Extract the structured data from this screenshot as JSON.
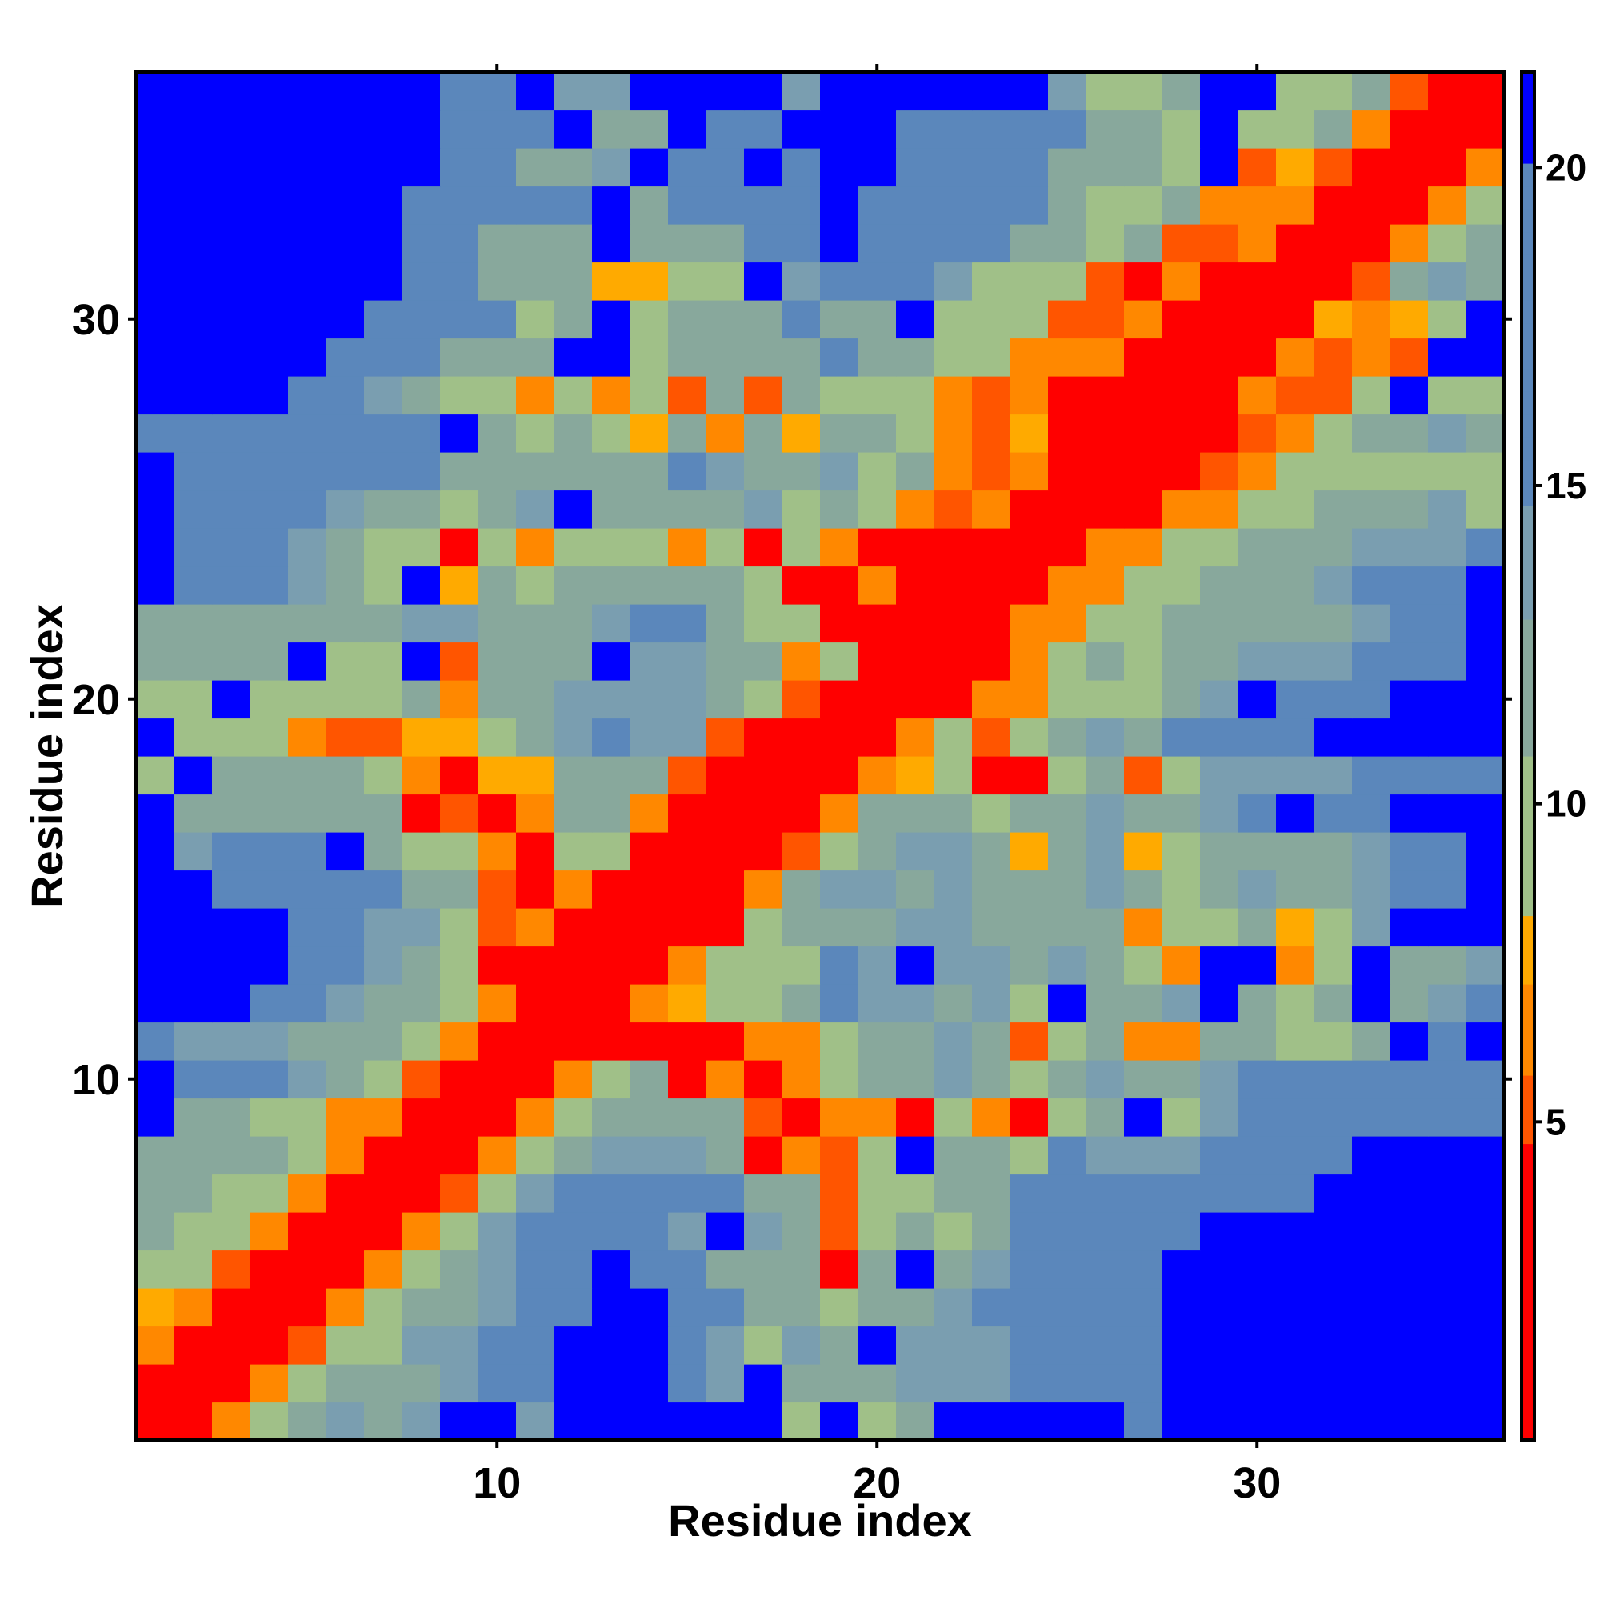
{
  "chart_data": {
    "type": "heatmap",
    "title": "",
    "xlabel": "Residue index",
    "ylabel": "Residue index",
    "xlim": [
      0.5,
      36.5
    ],
    "ylim": [
      0.5,
      36.5
    ],
    "x_ticks": [
      10,
      20,
      30
    ],
    "y_ticks": [
      10,
      20,
      30
    ],
    "colorbar": {
      "ticks": [
        5,
        10,
        15,
        20
      ],
      "range": [
        0,
        21.5
      ],
      "colors": [
        "#ff0000",
        "#ff5500",
        "#ff8800",
        "#ffaa00",
        "#a0c088",
        "#88a89c",
        "#7a9eb0",
        "#5b87bb",
        "#0000ff"
      ]
    },
    "n_residues": 36,
    "values_description_rows": "matrix[i][j] = distance between residue i+1 and residue j+1",
    "matrix": [
      [
        0.0,
        3.8,
        6.4,
        9.9,
        11.3,
        12.9,
        11.5,
        13.8,
        22.0,
        22.0,
        14.5,
        22.0,
        22.0,
        22.0,
        22.0,
        22.0,
        22.0,
        10.3,
        22.0,
        10.4,
        12.3,
        22.0,
        22.0,
        22.0,
        22.0,
        22.0,
        16.5,
        22.0,
        22.0,
        22.0,
        22.0,
        22.0,
        22.0,
        22.0,
        22.0,
        22.0
      ],
      [
        3.8,
        0.0,
        3.8,
        6.4,
        10.0,
        11.1,
        11.7,
        12.4,
        13.5,
        14.7,
        14.8,
        22.0,
        22.0,
        22.0,
        15.8,
        12.9,
        22.0,
        11.8,
        11.0,
        10.8,
        12.8,
        13.6,
        14.0,
        15.1,
        16.2,
        16.9,
        17.5,
        22.0,
        22.0,
        22.0,
        22.0,
        22.0,
        22.0,
        22.0,
        22.0,
        22.0
      ],
      [
        6.4,
        3.8,
        0.0,
        3.8,
        5.3,
        9.5,
        10.3,
        13.1,
        13.4,
        15.1,
        17.1,
        22.0,
        22.0,
        22.0,
        16.5,
        14.2,
        10.5,
        13.5,
        10.8,
        22.0,
        12.8,
        13.8,
        14.5,
        15.6,
        16.7,
        17.5,
        18.0,
        22.0,
        22.0,
        22.0,
        22.0,
        22.0,
        22.0,
        22.0,
        22.0,
        22.0
      ],
      [
        7.0,
        6.4,
        3.8,
        0.0,
        3.8,
        6.3,
        9.7,
        10.9,
        12.3,
        13.2,
        15.5,
        15.6,
        22.0,
        22.0,
        15.8,
        14.8,
        12.5,
        12.2,
        9.9,
        11.0,
        11.7,
        13.4,
        14.8,
        14.9,
        16.4,
        17.2,
        17.3,
        22.0,
        22.0,
        22.0,
        22.0,
        22.0,
        22.0,
        22.0,
        22.0,
        22.0
      ],
      [
        9.6,
        9.4,
        5.5,
        3.8,
        0.0,
        3.8,
        6.3,
        9.2,
        11.0,
        13.1,
        15.8,
        15.2,
        22.0,
        17.1,
        17.5,
        12.4,
        12.3,
        12.5,
        3.5,
        12.1,
        22.0,
        12.5,
        14.2,
        14.6,
        16.6,
        17.5,
        17.4,
        22.0,
        22.0,
        22.0,
        22.0,
        22.0,
        22.0,
        22.0,
        22.0,
        22.0
      ],
      [
        12.4,
        10.2,
        10.2,
        6.5,
        3.8,
        0.0,
        3.8,
        5.8,
        9.7,
        12.9,
        15.7,
        16.1,
        16.3,
        15.6,
        13.8,
        22.0,
        13.3,
        12.3,
        5.0,
        10.5,
        11.5,
        10.1,
        12.2,
        15.0,
        16.9,
        17.4,
        16.9,
        15.8,
        22.0,
        22.0,
        22.0,
        22.0,
        22.0,
        22.0,
        22.0,
        22.0
      ],
      [
        11.7,
        11.9,
        10.0,
        9.3,
        6.5,
        3.8,
        0.0,
        3.8,
        5.1,
        9.8,
        13.7,
        16.2,
        16.3,
        16.4,
        15.5,
        14.6,
        11.3,
        11.9,
        5.3,
        9.2,
        10.5,
        11.1,
        12.7,
        14.6,
        16.2,
        17.0,
        16.9,
        17.2,
        17.3,
        17.3,
        17.3,
        22.0,
        22.0,
        22.0,
        22.0,
        22.0
      ],
      [
        12.0,
        11.1,
        11.8,
        10.8,
        9.0,
        6.3,
        3.8,
        0.0,
        3.8,
        6.5,
        10.6,
        12.6,
        13.0,
        13.4,
        14.5,
        11.3,
        3.0,
        6.0,
        5.4,
        10.3,
        22.0,
        12.6,
        11.1,
        9.8,
        15.8,
        14.5,
        14.5,
        14.5,
        17.5,
        17.5,
        17.5,
        17.5,
        22.0,
        22.0,
        22.0,
        22.0
      ],
      [
        22.0,
        11.9,
        12.5,
        10.4,
        10.4,
        6.3,
        6.4,
        3.8,
        0.0,
        3.8,
        6.3,
        10.3,
        12.0,
        12.2,
        11.4,
        10.8,
        5.4,
        4.0,
        6.3,
        6.4,
        3.3,
        10.1,
        6.6,
        4.1,
        9.4,
        11.6,
        22.0,
        9.3,
        13.3,
        15.5,
        15.9,
        16.4,
        16.7,
        16.7,
        16.9,
        15.6
      ],
      [
        22.0,
        15.6,
        15.6,
        15.6,
        13.4,
        12.2,
        9.9,
        5.5,
        3.8,
        0.0,
        3.8,
        5.9,
        9.4,
        10.9,
        4.1,
        6.3,
        4.2,
        6.5,
        10.6,
        11.3,
        11.6,
        13.2,
        12.3,
        9.6,
        11.2,
        13.2,
        11.7,
        11.3,
        14.1,
        16.6,
        15.2,
        15.1,
        16.6,
        16.7,
        16.7,
        15.6
      ],
      [
        15.4,
        14.3,
        14.3,
        14.5,
        11.3,
        12.4,
        12.0,
        9.0,
        6.2,
        3.8,
        0.0,
        3.8,
        3.0,
        3.5,
        3.5,
        3.5,
        6.6,
        6.5,
        10.6,
        12.2,
        12.2,
        13.2,
        11.4,
        5.3,
        10.3,
        11.9,
        6.6,
        6.6,
        10.8,
        11.5,
        9.7,
        10.7,
        11.4,
        22.0,
        14.9,
        22.0
      ],
      [
        22.0,
        22.0,
        22.0,
        15.1,
        15.3,
        14.5,
        12.4,
        11.3,
        8.8,
        6.3,
        3.8,
        0.0,
        3.8,
        6.6,
        7.0,
        9.7,
        10.6,
        11.1,
        16.2,
        14.1,
        13.6,
        12.7,
        13.2,
        9.5,
        22.0,
        11.6,
        10.8,
        12.9,
        22.0,
        11.1,
        10.6,
        11.9,
        22.0,
        12.1,
        13.3,
        14.8
      ],
      [
        22.0,
        22.0,
        22.0,
        22.0,
        16.1,
        16.3,
        13.7,
        12.6,
        10.6,
        4.4,
        4.4,
        3.8,
        0.0,
        3.8,
        6.0,
        10.5,
        10.5,
        10.3,
        16.2,
        14.3,
        22.0,
        13.2,
        12.9,
        10.8,
        13.0,
        11.3,
        10.0,
        6.6,
        22.0,
        22.0,
        6.9,
        10.3,
        22.0,
        11.3,
        12.5,
        13.1
      ],
      [
        22.0,
        22.0,
        22.0,
        22.0,
        16.8,
        16.6,
        14.1,
        13.4,
        10.2,
        5.1,
        6.3,
        3.8,
        3.8,
        0.0,
        3.8,
        3.7,
        9.9,
        11.0,
        12.5,
        12.6,
        13.7,
        14.5,
        11.2,
        11.2,
        11.0,
        11.5,
        6.7,
        10.1,
        10.2,
        10.8,
        7.2,
        10.6,
        13.8,
        22.0,
        22.0,
        22.0
      ],
      [
        22.0,
        22.0,
        16.2,
        16.2,
        16.3,
        15.8,
        15.6,
        12.5,
        10.8,
        5.2,
        4.1,
        6.3,
        3.8,
        3.8,
        0.0,
        3.8,
        6.5,
        10.8,
        14.1,
        13.8,
        12.5,
        14.3,
        12.1,
        10.9,
        12.0,
        14.1,
        11.3,
        10.4,
        12.4,
        13.6,
        11.9,
        12.4,
        14.2,
        15.2,
        16.4,
        22.0
      ],
      [
        22.0,
        14.2,
        15.4,
        16.2,
        15.9,
        22.0,
        12.4,
        10.5,
        10.0,
        6.6,
        3.5,
        10.5,
        10.2,
        3.8,
        3.8,
        0.0,
        3.8,
        5.6,
        10.1,
        12.5,
        12.9,
        13.9,
        10.8,
        7.2,
        11.7,
        12.9,
        7.3,
        10.7,
        11.4,
        12.7,
        10.8,
        11.8,
        14.0,
        15.1,
        15.2,
        22.0
      ],
      [
        22.0,
        11.5,
        11.5,
        12.5,
        12.6,
        11.7,
        11.1,
        3.5,
        5.6,
        4.2,
        6.6,
        12.3,
        12.3,
        6.5,
        3.8,
        3.8,
        0.0,
        3.8,
        6.5,
        10.9,
        12.3,
        12.6,
        10.4,
        11.0,
        12.2,
        13.2,
        12.5,
        12.0,
        14.4,
        16.1,
        22.0,
        15.7,
        16.5,
        22.0,
        22.0,
        22.0
      ],
      [
        10.4,
        22.0,
        12.5,
        12.5,
        12.4,
        11.2,
        10.3,
        6.5,
        4.2,
        7.4,
        7.4,
        12.1,
        12.1,
        11.9,
        5.2,
        3.8,
        3.8,
        0.0,
        3.8,
        6.1,
        7.4,
        10.4,
        3.0,
        3.0,
        10.6,
        11.3,
        5.4,
        10.5,
        13.5,
        12.8,
        13.3,
        14.5,
        16.5,
        16.5,
        16.5,
        15.2
      ],
      [
        22.0,
        10.4,
        10.4,
        10.4,
        5.8,
        5.1,
        5.1,
        7.4,
        7.2,
        10.2,
        11.2,
        13.4,
        14.9,
        13.2,
        13.4,
        5.5,
        3.8,
        3.8,
        0.0,
        3.8,
        6.4,
        10.4,
        4.5,
        10.3,
        11.6,
        13.0,
        12.7,
        14.8,
        16.3,
        17.2,
        16.8,
        22.0,
        22.0,
        22.0,
        22.0,
        22.0
      ],
      [
        10.1,
        10.4,
        22.0,
        10.1,
        10.6,
        10.6,
        10.6,
        11.0,
        6.8,
        12.4,
        12.6,
        13.2,
        14.1,
        13.9,
        13.8,
        10.8,
        10.1,
        5.3,
        3.8,
        0.0,
        3.8,
        3.8,
        5.9,
        6.8,
        10.6,
        10.4,
        10.1,
        12.1,
        13.2,
        22.0,
        15.3,
        16.5,
        16.5,
        22.0,
        22.0,
        22.0
      ],
      [
        12.4,
        12.5,
        12.5,
        12.1,
        22.0,
        10.6,
        10.1,
        22.0,
        4.7,
        10.9,
        10.9,
        12.3,
        22.0,
        13.4,
        13.6,
        12.2,
        11.4,
        6.4,
        10.0,
        3.8,
        0.0,
        3.8,
        3.8,
        6.5,
        10.2,
        11.2,
        10.6,
        11.1,
        12.7,
        13.4,
        13.4,
        14.5,
        15.4,
        15.4,
        15.4,
        22.0
      ],
      [
        12.6,
        12.6,
        12.6,
        12.6,
        12.6,
        12.6,
        12.6,
        12.8,
        12.8,
        12.6,
        12.6,
        12.6,
        12.8,
        15.2,
        15.2,
        12.4,
        9.2,
        9.2,
        4.2,
        3.8,
        3.8,
        0.0,
        3.8,
        6.0,
        6.5,
        10.6,
        10.6,
        11.0,
        11.6,
        12.4,
        12.4,
        12.3,
        13.0,
        15.2,
        15.2,
        22.0
      ],
      [
        22.0,
        16.0,
        16.0,
        16.0,
        12.9,
        11.2,
        10.5,
        22.0,
        7.0,
        11.2,
        10.4,
        12.4,
        12.4,
        12.4,
        12.4,
        11.0,
        10.6,
        3.5,
        4.0,
        6.0,
        3.8,
        3.8,
        0.0,
        3.8,
        6.0,
        6.5,
        10.3,
        10.6,
        10.9,
        12.2,
        12.4,
        13.0,
        15.0,
        16.1,
        16.1,
        22.0
      ],
      [
        22.0,
        16.3,
        16.3,
        15.7,
        12.8,
        11.2,
        10.6,
        10.1,
        4.0,
        10.6,
        6.1,
        10.5,
        10.7,
        10.3,
        6.1,
        10.4,
        3.3,
        10.1,
        6.1,
        4.3,
        3.8,
        3.8,
        0.0,
        0.0,
        3.8,
        6.0,
        6.2,
        10.3,
        10.6,
        12.3,
        12.2,
        12.3,
        13.3,
        13.7,
        13.8,
        16.5
      ],
      [
        22.0,
        16.2,
        16.2,
        16.2,
        16.1,
        13.1,
        12.6,
        11.5,
        10.3,
        11.4,
        12.9,
        22.0,
        11.4,
        12.6,
        12.6,
        12.0,
        12.8,
        10.4,
        11.6,
        10.7,
        6.7,
        5.1,
        6.2,
        3.8,
        3.8,
        0.0,
        3.8,
        6.1,
        6.5,
        10.4,
        10.4,
        11.5,
        12.3,
        11.7,
        13.0,
        10.5
      ],
      [
        22.0,
        16.4,
        16.4,
        16.4,
        16.4,
        16.4,
        15.5,
        15.5,
        11.6,
        12.6,
        11.2,
        12.5,
        12.5,
        12.5,
        15.4,
        12.9,
        12.4,
        11.0,
        12.8,
        10.2,
        11.2,
        6.2,
        5.2,
        6.2,
        3.8,
        3.8,
        0.0,
        3.8,
        5.7,
        6.2,
        10.5,
        10.5,
        10.6,
        10.4,
        10.6,
        10.3
      ],
      [
        16.6,
        16.6,
        16.6,
        16.6,
        16.6,
        15.6,
        15.6,
        15.6,
        22.0,
        10.8,
        10.4,
        12.1,
        10.5,
        7.3,
        12.0,
        6.8,
        11.5,
        7.5,
        11.5,
        11.1,
        10.5,
        6.9,
        5.5,
        7.0,
        3.8,
        0.0,
        3.8,
        0.0,
        3.8,
        5.5,
        6.4,
        10.4,
        11.6,
        11.6,
        14.4,
        12.5
      ],
      [
        22.0,
        22.0,
        22.0,
        22.0,
        16.0,
        15.7,
        14.0,
        12.5,
        10.6,
        10.3,
        5.8,
        10.4,
        6.9,
        10.5,
        5.1,
        11.0,
        4.7,
        11.1,
        10.6,
        9.7,
        10.2,
        6.9,
        5.6,
        6.8,
        3.8,
        3.8,
        0.0,
        3.8,
        3.8,
        6.0,
        5.3,
        5.3,
        10.7,
        22.0,
        10.5,
        10.5
      ],
      [
        22.0,
        22.0,
        22.0,
        22.0,
        22.0,
        17.2,
        15.4,
        15.4,
        12.1,
        12.1,
        12.5,
        22.0,
        22.0,
        10.4,
        12.5,
        12.4,
        10.8,
        12.6,
        15.1,
        12.6,
        12.0,
        10.1,
        10.5,
        5.8,
        6.2,
        6.8,
        3.8,
        3.8,
        0.0,
        3.8,
        6.3,
        4.9,
        6.7,
        5.1,
        22.0,
        22.0
      ],
      [
        22.0,
        22.0,
        22.0,
        22.0,
        22.0,
        22.0,
        17.6,
        17.6,
        15.4,
        15.4,
        10.4,
        12.3,
        22.0,
        10.2,
        12.6,
        12.3,
        12.6,
        16.3,
        12.5,
        12.4,
        22.0,
        10.4,
        10.2,
        10.4,
        5.5,
        5.2,
        5.8,
        3.8,
        3.8,
        0.0,
        3.8,
        7.1,
        6.2,
        7.1,
        10.2,
        22.0
      ],
      [
        22.0,
        22.0,
        22.0,
        22.0,
        22.0,
        22.0,
        22.0,
        17.5,
        17.6,
        12.5,
        12.6,
        10.8,
        7.0,
        7.0,
        10.6,
        9.9,
        22.0,
        12.8,
        15.5,
        15.5,
        15.5,
        12.8,
        10.2,
        10.1,
        10.1,
        5.5,
        4.3,
        6.0,
        3.8,
        3.8,
        0.0,
        3.8,
        5.3,
        11.4,
        12.8,
        10.8
      ],
      [
        22.0,
        22.0,
        22.0,
        22.0,
        22.0,
        22.0,
        22.0,
        17.5,
        17.5,
        12.5,
        12.5,
        12.6,
        22.0,
        12.6,
        12.5,
        12.6,
        15.7,
        17.5,
        22.0,
        17.5,
        15.8,
        15.6,
        15.3,
        10.8,
        11.6,
        10.6,
        10.8,
        5.2,
        4.6,
        6.0,
        3.8,
        0.0,
        3.8,
        6.6,
        10.3,
        12.6
      ],
      [
        22.0,
        22.0,
        22.0,
        22.0,
        22.0,
        22.0,
        22.0,
        17.5,
        17.5,
        15.2,
        15.2,
        15.7,
        22.0,
        11.8,
        15.2,
        15.8,
        15.8,
        15.8,
        22.0,
        17.6,
        17.6,
        16.3,
        15.7,
        15.4,
        11.3,
        10.4,
        10.4,
        11.0,
        6.1,
        6.6,
        6.6,
        3.8,
        0.0,
        3.8,
        6.1,
        10.7
      ],
      [
        22.0,
        22.0,
        22.0,
        22.0,
        22.0,
        22.0,
        22.0,
        22.0,
        15.2,
        15.2,
        12.5,
        12.7,
        12.9,
        22.0,
        15.4,
        15.5,
        22.0,
        17.0,
        22.0,
        22.0,
        17.5,
        17.5,
        16.0,
        15.4,
        11.6,
        11.4,
        12.5,
        10.6,
        22.0,
        5.5,
        7.1,
        5.5,
        3.8,
        0.0,
        3.8,
        5.8
      ],
      [
        22.0,
        22.0,
        22.0,
        22.0,
        22.0,
        22.0,
        22.0,
        22.0,
        15.1,
        15.3,
        15.2,
        22.0,
        12.2,
        12.5,
        22.0,
        15.3,
        15.3,
        22.0,
        22.0,
        22.0,
        17.2,
        17.2,
        16.4,
        16.3,
        16.0,
        12.5,
        11.4,
        10.5,
        22.0,
        10.1,
        9.6,
        11.1,
        6.3,
        4.0,
        3.8,
        0.0
      ],
      [
        22.0,
        22.0,
        22.0,
        22.0,
        22.0,
        22.0,
        22.0,
        22.0,
        15.7,
        15.5,
        22.0,
        14.3,
        13.2,
        22.0,
        22.0,
        22.0,
        22.0,
        14.0,
        22.0,
        22.0,
        22.0,
        22.0,
        22.0,
        22.0,
        14.0,
        10.5,
        10.4,
        12.4,
        22.0,
        22.0,
        10.4,
        10.7,
        11.5,
        5.5,
        0.0,
        0.0
      ]
    ]
  }
}
